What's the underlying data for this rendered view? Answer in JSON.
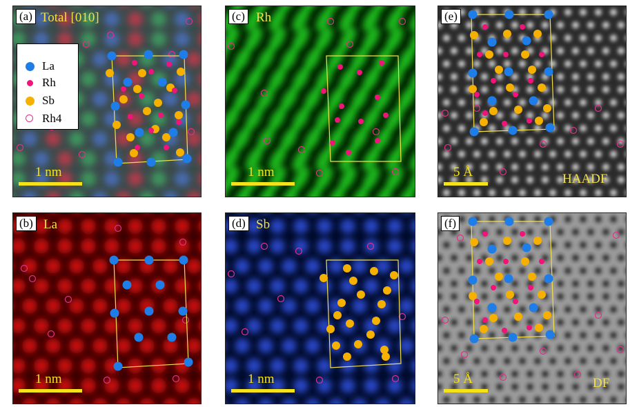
{
  "colors": {
    "La": "#1e7de6",
    "Rh": "#f0147a",
    "Sb": "#f5b000",
    "Rh4": "#e0308a",
    "cell": "#f2e04a",
    "text": "#f2e04a"
  },
  "legend": [
    {
      "key": "La",
      "label": "La",
      "kind": "filled"
    },
    {
      "key": "Rh",
      "label": "Rh",
      "kind": "filled-small"
    },
    {
      "key": "Sb",
      "label": "Sb",
      "kind": "filled"
    },
    {
      "key": "Rh4",
      "label": "Rh4",
      "kind": "open"
    }
  ],
  "panels": [
    {
      "id": "a",
      "label": "(a)",
      "title": "Total   [010]",
      "scale": "1 nm",
      "tag": "",
      "style": "total"
    },
    {
      "id": "b",
      "label": "(b)",
      "title": "La",
      "scale": "1 nm",
      "tag": "",
      "style": "red"
    },
    {
      "id": "c",
      "label": "(c)",
      "title": "Rh",
      "scale": "1 nm",
      "tag": "",
      "style": "green"
    },
    {
      "id": "d",
      "label": "(d)",
      "title": "Sb",
      "scale": "1 nm",
      "tag": "",
      "style": "blue"
    },
    {
      "id": "e",
      "label": "(e)",
      "title": "",
      "scale": "5 Å",
      "tag": "HAADF",
      "style": "haadf"
    },
    {
      "id": "f",
      "label": "(f)",
      "title": "",
      "scale": "5 Å",
      "tag": "DF",
      "style": "df"
    }
  ]
}
